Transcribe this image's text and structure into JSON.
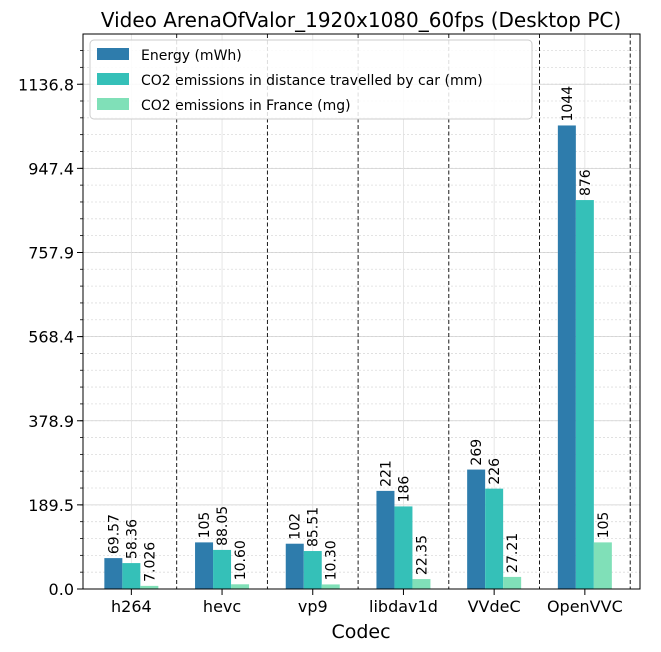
{
  "chart_data": {
    "type": "bar",
    "title": "Video ArenaOfValor_1920x1080_60fps (Desktop PC)",
    "xlabel": "Codec",
    "ylabel": "",
    "categories": [
      "h264",
      "hevc",
      "vp9",
      "libdav1d",
      "VVdeC",
      "OpenVVC"
    ],
    "series": [
      {
        "name": "Energy (mWh)",
        "color": "#2e7cac",
        "values": [
          69.57,
          105,
          102,
          221,
          269,
          1044
        ],
        "labels": [
          "69.57",
          "105",
          "102",
          "221",
          "269",
          "1044"
        ]
      },
      {
        "name": "CO2 emissions in distance travelled by car (mm)",
        "color": "#35c0b8",
        "values": [
          58.36,
          88.05,
          85.51,
          186,
          226,
          876
        ],
        "labels": [
          "58.36",
          "88.05",
          "85.51",
          "186",
          "226",
          "876"
        ]
      },
      {
        "name": "CO2 emissions in France (mg)",
        "color": "#80e0b8",
        "values": [
          7.026,
          10.6,
          10.3,
          22.35,
          27.21,
          105
        ],
        "labels": [
          "7.026",
          "10.60",
          "10.30",
          "22.35",
          "27.21",
          "105"
        ]
      }
    ],
    "yticks": [
      0.0,
      189.5,
      378.9,
      568.4,
      757.9,
      947.4,
      1136.8
    ],
    "ytick_labels": [
      "0.0",
      "189.5",
      "378.9",
      "568.4",
      "757.9",
      "947.4",
      "1136.8"
    ],
    "ylim": [
      0,
      1250
    ],
    "grid": true,
    "legend_position": "top-left"
  }
}
